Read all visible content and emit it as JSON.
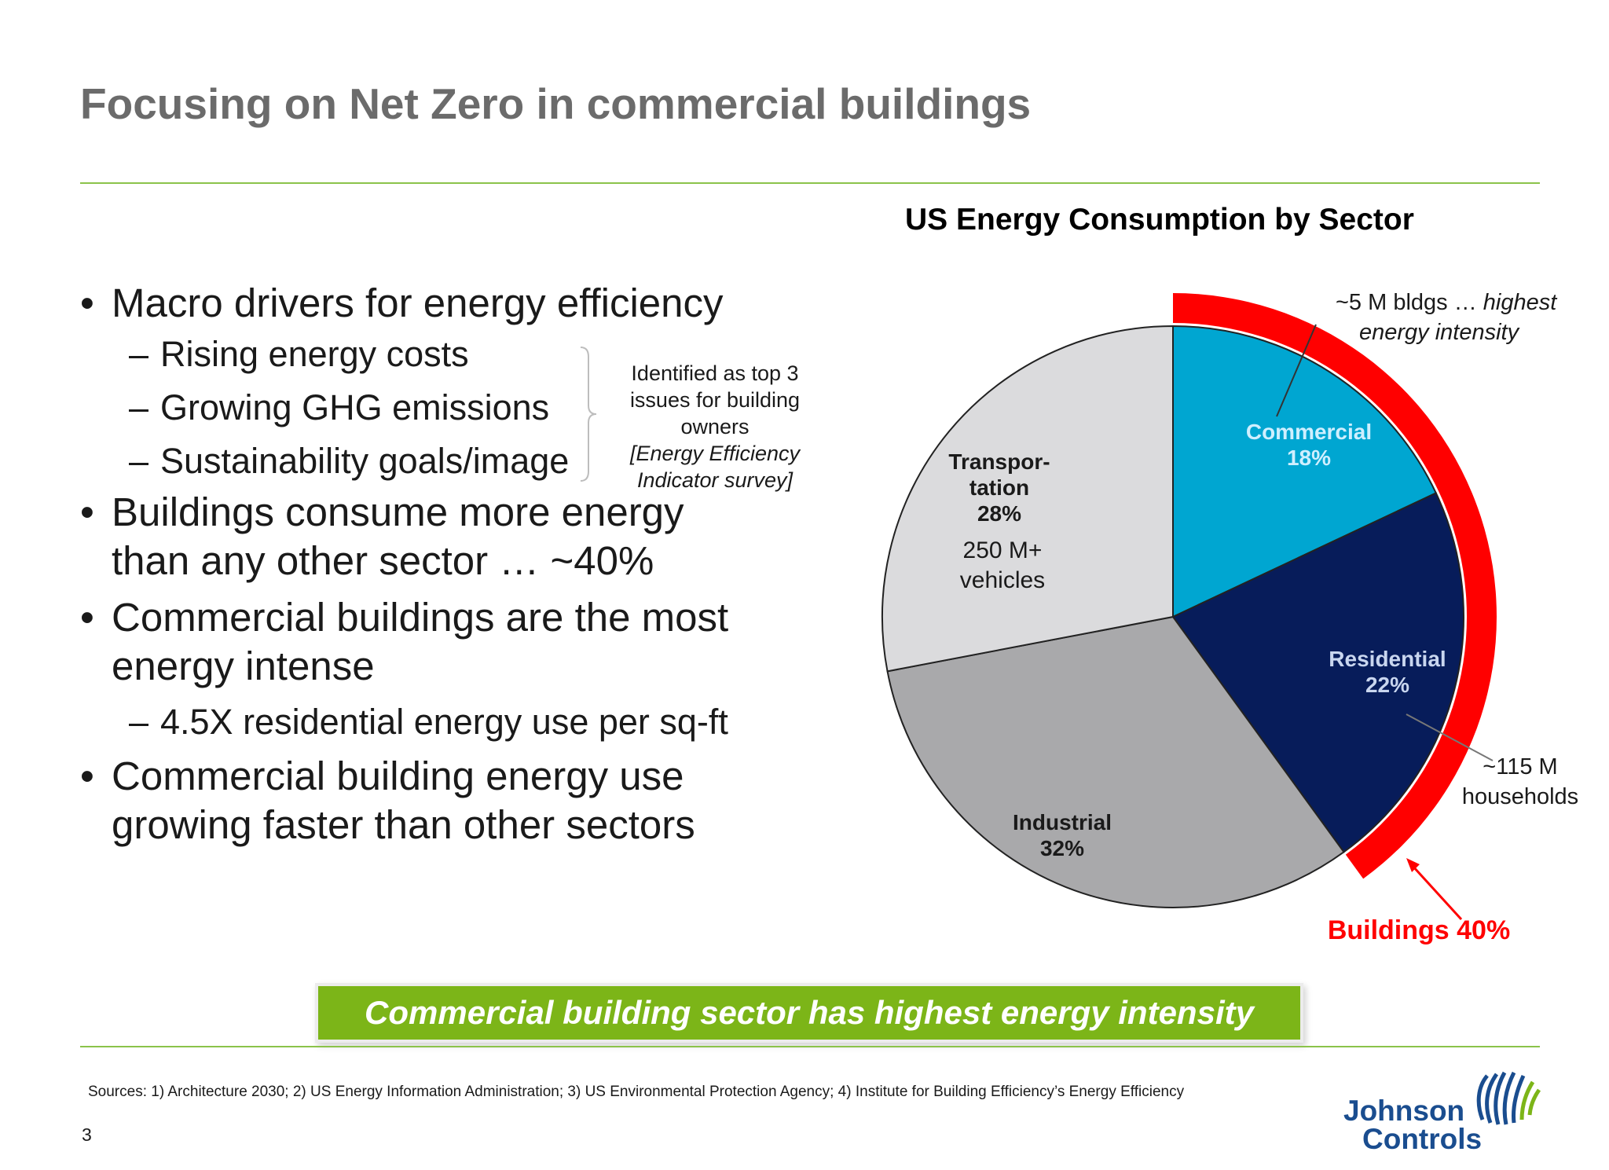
{
  "title": "Focusing on Net Zero in commercial buildings",
  "bullets": {
    "b1": "Macro drivers for energy efficiency",
    "b1_subs": [
      "Rising energy costs",
      "Growing GHG emissions",
      "Sustainability goals/image"
    ],
    "b2": [
      "Buildings consume more energy",
      "than any other sector … ~40%"
    ],
    "b3": [
      "Commercial buildings are the most",
      "energy intense"
    ],
    "b3_sub": "4.5X residential energy use per sq-ft",
    "b4": [
      "Commercial building energy use",
      "growing faster than other sectors"
    ]
  },
  "bracket_note": {
    "lines": [
      "Identified as top 3",
      "issues for building",
      "owners"
    ],
    "italic_lines": [
      "[Energy Efficiency",
      "Indicator survey]"
    ]
  },
  "chart_data": {
    "type": "pie",
    "title": "US Energy Consumption by Sector",
    "slices": [
      {
        "name": "Commercial",
        "value": 18,
        "label": "18%",
        "color": "#00a6d1"
      },
      {
        "name": "Residential",
        "value": 22,
        "label": "22%",
        "color": "#071c5a"
      },
      {
        "name": "Industrial",
        "value": 32,
        "label": "32%",
        "color": "#a9a9ab"
      },
      {
        "name": "Transportation",
        "value": 28,
        "label": "28%",
        "color": "#dbdbdd"
      }
    ],
    "slice_labels": {
      "commercial": [
        "Commercial",
        "18%"
      ],
      "residential": [
        "Residential",
        "22%"
      ],
      "industrial": [
        "Industrial",
        "32%"
      ],
      "transportation": [
        "Transpor-",
        "tation",
        "28%"
      ]
    },
    "transportation_note": [
      "250 M+",
      "vehicles"
    ],
    "annotations": {
      "commercial_callout": [
        "~5 M bldgs … ",
        "highest",
        "energy intensity"
      ],
      "residential_callout": [
        "~115 M",
        "households"
      ],
      "buildings_arc": {
        "label": "Buildings 40%",
        "value": 40,
        "color": "#ff0000"
      }
    }
  },
  "banner": "Commercial building sector has highest energy intensity",
  "sources": "Sources: 1) Architecture 2030; 2) US Energy Information Administration; 3) US Environmental Protection Agency; 4) Institute for  Building Efficiency’s Energy Efficiency",
  "page_number": "3",
  "logo": {
    "line1": "Johnson",
    "line2": "Controls"
  }
}
